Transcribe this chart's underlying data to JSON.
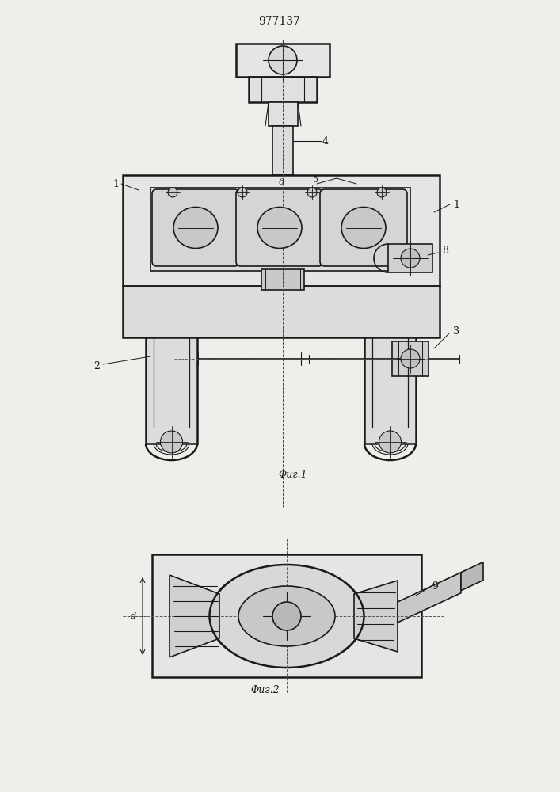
{
  "title": "977137",
  "bg_color": "#f0eeea",
  "line_color": "#1a1a1a",
  "fig1_caption": "Φиг.1",
  "fig2_caption": "Φиг.2"
}
